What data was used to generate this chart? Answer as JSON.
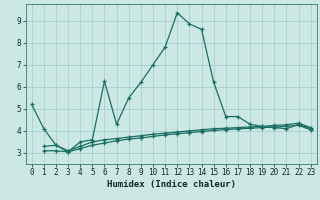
{
  "xlabel": "Humidex (Indice chaleur)",
  "background_color": "#cce8e5",
  "grid_color": "#aacfcc",
  "line_color": "#1a6e63",
  "xlim": [
    -0.5,
    23.5
  ],
  "ylim": [
    2.5,
    9.75
  ],
  "xticks": [
    0,
    1,
    2,
    3,
    4,
    5,
    6,
    7,
    8,
    9,
    10,
    11,
    12,
    13,
    14,
    15,
    16,
    17,
    18,
    19,
    20,
    21,
    22,
    23
  ],
  "yticks": [
    3,
    4,
    5,
    6,
    7,
    8,
    9
  ],
  "series1_x": [
    0,
    1,
    2,
    3,
    4,
    5,
    6,
    7,
    8,
    9,
    10,
    11,
    12,
    13,
    14,
    15,
    16,
    17,
    18,
    19,
    20,
    21,
    22,
    23
  ],
  "series1_y": [
    5.2,
    4.1,
    3.35,
    3.05,
    3.5,
    3.6,
    6.25,
    4.3,
    5.5,
    6.2,
    7.0,
    7.8,
    9.35,
    8.85,
    8.6,
    6.2,
    4.65,
    4.65,
    4.3,
    4.2,
    4.15,
    4.1,
    4.3,
    4.1
  ],
  "series2_x": [
    1,
    2,
    3,
    4,
    5,
    6,
    7,
    8,
    9,
    10,
    11,
    12,
    13,
    14,
    15,
    16,
    17,
    18,
    19,
    20,
    21,
    22,
    23
  ],
  "series2_y": [
    3.3,
    3.35,
    3.1,
    3.3,
    3.5,
    3.6,
    3.65,
    3.72,
    3.78,
    3.85,
    3.9,
    3.95,
    4.0,
    4.05,
    4.1,
    4.12,
    4.15,
    4.18,
    4.2,
    4.25,
    4.28,
    4.35,
    4.15
  ],
  "series3_x": [
    1,
    2,
    3,
    4,
    5,
    6,
    7,
    8,
    9,
    10,
    11,
    12,
    13,
    14,
    15,
    16,
    17,
    18,
    19,
    20,
    21,
    22,
    23
  ],
  "series3_y": [
    3.1,
    3.1,
    3.05,
    3.2,
    3.35,
    3.45,
    3.55,
    3.63,
    3.68,
    3.75,
    3.82,
    3.87,
    3.92,
    3.97,
    4.02,
    4.06,
    4.09,
    4.12,
    4.15,
    4.18,
    4.21,
    4.25,
    4.05
  ],
  "marker": "+",
  "markersize": 3,
  "linewidth": 0.9,
  "tick_fontsize": 5.5,
  "xlabel_fontsize": 6.5
}
